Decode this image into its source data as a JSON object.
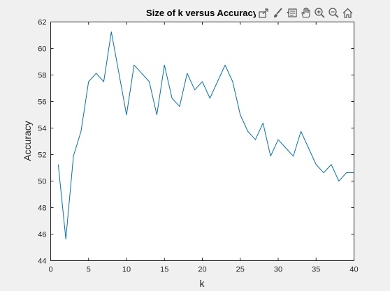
{
  "chart_data": {
    "type": "line",
    "title": "Size of k versus Accuracy",
    "xlabel": "k",
    "ylabel": "Accuracy",
    "xlim": [
      0,
      40
    ],
    "ylim": [
      44,
      62
    ],
    "xticks": [
      0,
      5,
      10,
      15,
      20,
      25,
      30,
      35,
      40
    ],
    "yticks": [
      44,
      46,
      48,
      50,
      52,
      54,
      56,
      58,
      60,
      62
    ],
    "grid": false,
    "legend": "none",
    "series": [
      {
        "color": "#0072bd",
        "x": [
          1,
          2,
          3,
          4,
          5,
          6,
          7,
          8,
          9,
          10,
          11,
          12,
          13,
          14,
          15,
          16,
          17,
          18,
          19,
          20,
          21,
          22,
          23,
          24,
          25,
          26,
          27,
          28,
          29,
          30,
          31,
          32,
          33,
          34,
          35,
          36,
          37,
          38,
          39,
          40
        ],
        "y": [
          51.25,
          45.63,
          51.88,
          53.75,
          57.5,
          58.13,
          57.5,
          61.25,
          58.13,
          55.0,
          58.75,
          58.13,
          57.5,
          55.0,
          58.75,
          56.25,
          55.63,
          58.13,
          56.88,
          57.5,
          56.25,
          57.5,
          58.75,
          57.5,
          55.0,
          53.75,
          53.13,
          54.38,
          51.88,
          53.13,
          52.5,
          51.88,
          53.75,
          52.5,
          51.25,
          50.63,
          51.25,
          50.0,
          50.63,
          50.63
        ]
      }
    ]
  },
  "toolbar": {
    "icons": [
      "export-icon",
      "brush-icon",
      "datatip-icon",
      "pan-icon",
      "zoom-in-icon",
      "zoom-out-icon",
      "home-icon"
    ]
  }
}
